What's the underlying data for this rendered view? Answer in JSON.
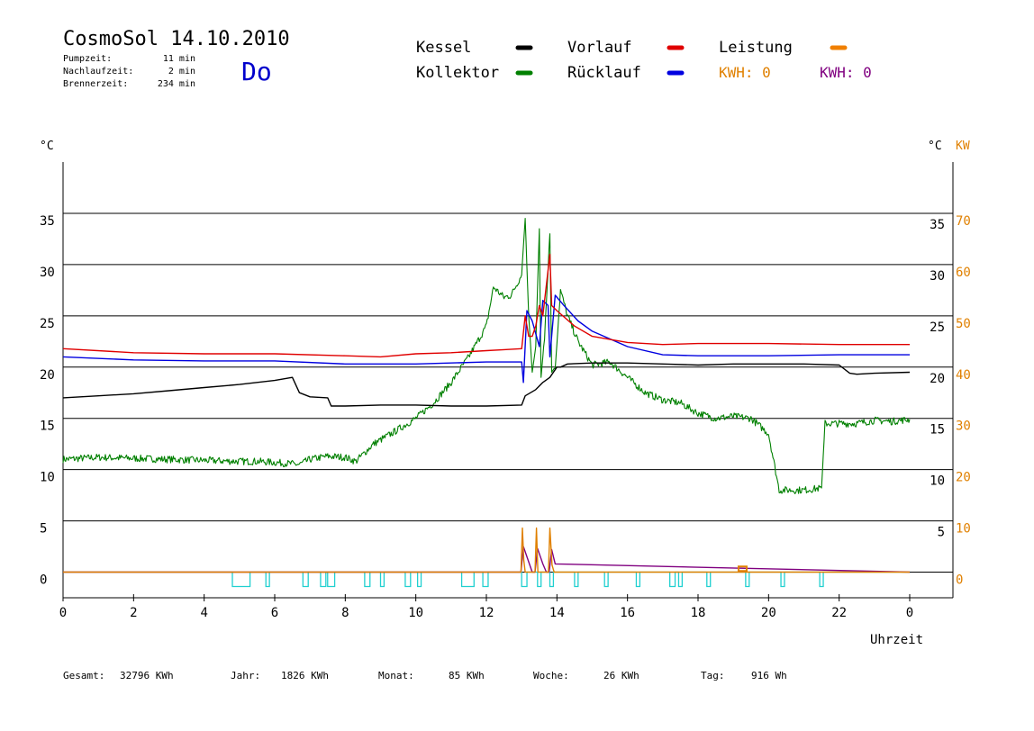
{
  "header": {
    "title": "CosmoSol 14.10.2010",
    "day": "Do",
    "stats": [
      {
        "label": "Pumpzeit:",
        "value": "11 min"
      },
      {
        "label": "Nachlaufzeit:",
        "value": "2 min"
      },
      {
        "label": "Brennerzeit:",
        "value": "234 min"
      }
    ]
  },
  "legend": [
    {
      "name": "Kessel",
      "color": "#000000"
    },
    {
      "name": "Vorlauf",
      "color": "#e00000"
    },
    {
      "name": "Leistung",
      "color": "#f08000"
    },
    {
      "name": "Kollektor",
      "color": "#008000"
    },
    {
      "name": "Rücklauf",
      "color": "#0000e0"
    }
  ],
  "kwh_labels": [
    {
      "text": "KWH: 0",
      "color": "#e08000"
    },
    {
      "text": "KWH: 0",
      "color": "#800080"
    }
  ],
  "footer": [
    {
      "label": "Gesamt:",
      "value": "32796 KWh"
    },
    {
      "label": "Jahr:",
      "value": "1826 KWh"
    },
    {
      "label": "Monat:",
      "value": "85 KWh"
    },
    {
      "label": "Woche:",
      "value": "26 KWh"
    },
    {
      "label": "Tag:",
      "value": "916 Wh"
    }
  ],
  "chart_data": {
    "type": "line",
    "xlabel": "Uhrzeit",
    "x_ticks": [
      "0",
      "2",
      "4",
      "6",
      "8",
      "10",
      "12",
      "14",
      "16",
      "18",
      "20",
      "22",
      "0"
    ],
    "xlim": [
      0,
      24
    ],
    "y_left_label": "°C",
    "y_right_label": "°C",
    "y_right2_label": "KW",
    "ylim": [
      -2.5,
      40
    ],
    "y_left_ticks": [
      "0",
      "5",
      "10",
      "15",
      "20",
      "25",
      "30",
      "35"
    ],
    "y_right_ticks": [
      "5",
      "10",
      "15",
      "20",
      "25",
      "30",
      "35"
    ],
    "y_kw_ticks": [
      "0",
      "10",
      "20",
      "30",
      "40",
      "50",
      "60",
      "70"
    ],
    "grid": true,
    "series": [
      {
        "name": "Kollektor",
        "color": "#008000",
        "x": [
          0,
          1,
          2,
          3,
          4,
          5,
          5.5,
          6,
          6.7,
          7,
          7.5,
          8,
          8.3,
          8.8,
          9.3,
          10,
          10.5,
          11,
          11.5,
          12,
          12.2,
          12.5,
          12.7,
          13.0,
          13.1,
          13.2,
          13.3,
          13.4,
          13.5,
          13.55,
          13.65,
          13.8,
          13.85,
          13.95,
          14.1,
          14.3,
          14.6,
          15,
          15.5,
          16,
          16.5,
          17,
          17.5,
          18,
          18.5,
          19,
          19.5,
          20,
          20.3,
          20.5,
          21,
          21.5,
          21.6,
          22,
          22.5,
          23,
          23.5,
          24
        ],
        "y": [
          11,
          11.2,
          11.1,
          11,
          10.9,
          10.8,
          10.8,
          10.7,
          10.5,
          11,
          11.3,
          11.2,
          10.8,
          12.5,
          13.5,
          15,
          16.5,
          18.5,
          21,
          24,
          27.8,
          26.8,
          27,
          29,
          34.5,
          25,
          19.5,
          22,
          33.5,
          19,
          23,
          33,
          19.5,
          20,
          27.5,
          25,
          22.5,
          20.2,
          20.5,
          19,
          17.5,
          16.8,
          16.5,
          15.5,
          15,
          15.2,
          15,
          13.5,
          8,
          8,
          8,
          8.2,
          14.5,
          14.5,
          14.5,
          14.8,
          14.7,
          14.9
        ]
      },
      {
        "name": "Vorlauf",
        "color": "#e00000",
        "x": [
          0,
          2,
          4,
          6,
          8,
          9,
          10,
          11,
          12,
          12.5,
          13.0,
          13.1,
          13.2,
          13.3,
          13.4,
          13.5,
          13.6,
          13.8,
          13.85,
          14,
          14.5,
          15,
          16,
          17,
          18,
          20,
          22,
          24
        ],
        "y": [
          21.8,
          21.4,
          21.3,
          21.3,
          21.1,
          21,
          21.3,
          21.4,
          21.6,
          21.7,
          21.8,
          25,
          23,
          23,
          24,
          26,
          25,
          31,
          26,
          25.5,
          24,
          23,
          22.4,
          22.2,
          22.3,
          22.3,
          22.2,
          22.2
        ]
      },
      {
        "name": "Rücklauf",
        "color": "#0000e0",
        "x": [
          0,
          2,
          4,
          6,
          8,
          10,
          12,
          13.0,
          13.05,
          13.15,
          13.3,
          13.5,
          13.6,
          13.75,
          13.8,
          13.95,
          14.2,
          14.6,
          15,
          16,
          17,
          18,
          20,
          22,
          24
        ],
        "y": [
          21,
          20.7,
          20.6,
          20.6,
          20.3,
          20.3,
          20.5,
          20.5,
          18.5,
          25.5,
          24.5,
          22,
          26.5,
          26,
          21,
          27,
          26,
          24.5,
          23.5,
          22,
          21.2,
          21.1,
          21.1,
          21.2,
          21.2
        ]
      },
      {
        "name": "Kessel",
        "color": "#000000",
        "x": [
          0,
          1,
          2,
          3,
          4,
          5,
          6,
          6.5,
          6.7,
          7,
          7.5,
          7.6,
          8,
          9,
          10,
          11,
          12,
          13.0,
          13.1,
          13.4,
          13.6,
          13.8,
          14.0,
          14.1,
          14.3,
          15,
          16,
          17,
          18,
          19,
          20,
          21,
          22,
          22.3,
          22.5,
          23,
          24
        ],
        "y": [
          17,
          17.2,
          17.4,
          17.7,
          18,
          18.3,
          18.7,
          19,
          17.5,
          17.1,
          17,
          16.2,
          16.2,
          16.3,
          16.3,
          16.2,
          16.2,
          16.3,
          17.2,
          17.8,
          18.5,
          19,
          20,
          20,
          20.3,
          20.4,
          20.4,
          20.3,
          20.2,
          20.3,
          20.3,
          20.3,
          20.2,
          19.4,
          19.3,
          19.4,
          19.5
        ]
      },
      {
        "name": "Leistung",
        "color": "#e08000",
        "x": [
          0,
          12.98,
          13.02,
          13.06,
          13.1,
          13.3,
          13.38,
          13.42,
          13.46,
          13.7,
          13.76,
          13.8,
          13.86,
          13.92,
          24
        ],
        "y": [
          0,
          0,
          4.3,
          1.2,
          0,
          0,
          0,
          4.3,
          0,
          0,
          0,
          4.3,
          0.7,
          0,
          0
        ]
      },
      {
        "name": "Pumpe",
        "color": "#800080",
        "x": [
          0,
          12.98,
          13.05,
          13.15,
          13.3,
          13.38,
          13.45,
          13.6,
          13.7,
          13.78,
          13.85,
          13.95,
          24
        ],
        "y": [
          0,
          0,
          2.5,
          1.5,
          0,
          0,
          2.3,
          0.8,
          0,
          0,
          2.2,
          0.8,
          0
        ]
      }
    ],
    "burner_on_intervals": [
      [
        4.8,
        5.3
      ],
      [
        5.75,
        5.85
      ],
      [
        6.8,
        6.95
      ],
      [
        7.3,
        7.45
      ],
      [
        7.5,
        7.7
      ],
      [
        8.55,
        8.7
      ],
      [
        9.0,
        9.1
      ],
      [
        9.7,
        9.85
      ],
      [
        10.05,
        10.15
      ],
      [
        11.3,
        11.65
      ],
      [
        11.9,
        12.05
      ],
      [
        13.0,
        13.15
      ],
      [
        13.45,
        13.55
      ],
      [
        13.8,
        13.9
      ],
      [
        14.5,
        14.6
      ],
      [
        15.35,
        15.45
      ],
      [
        16.25,
        16.35
      ],
      [
        17.2,
        17.35
      ],
      [
        17.45,
        17.55
      ],
      [
        18.25,
        18.35
      ],
      [
        19.35,
        19.45
      ],
      [
        20.35,
        20.45
      ],
      [
        21.45,
        21.55
      ]
    ],
    "marker": {
      "x": 19.25,
      "y": 0.2,
      "color": "#e08000"
    }
  }
}
